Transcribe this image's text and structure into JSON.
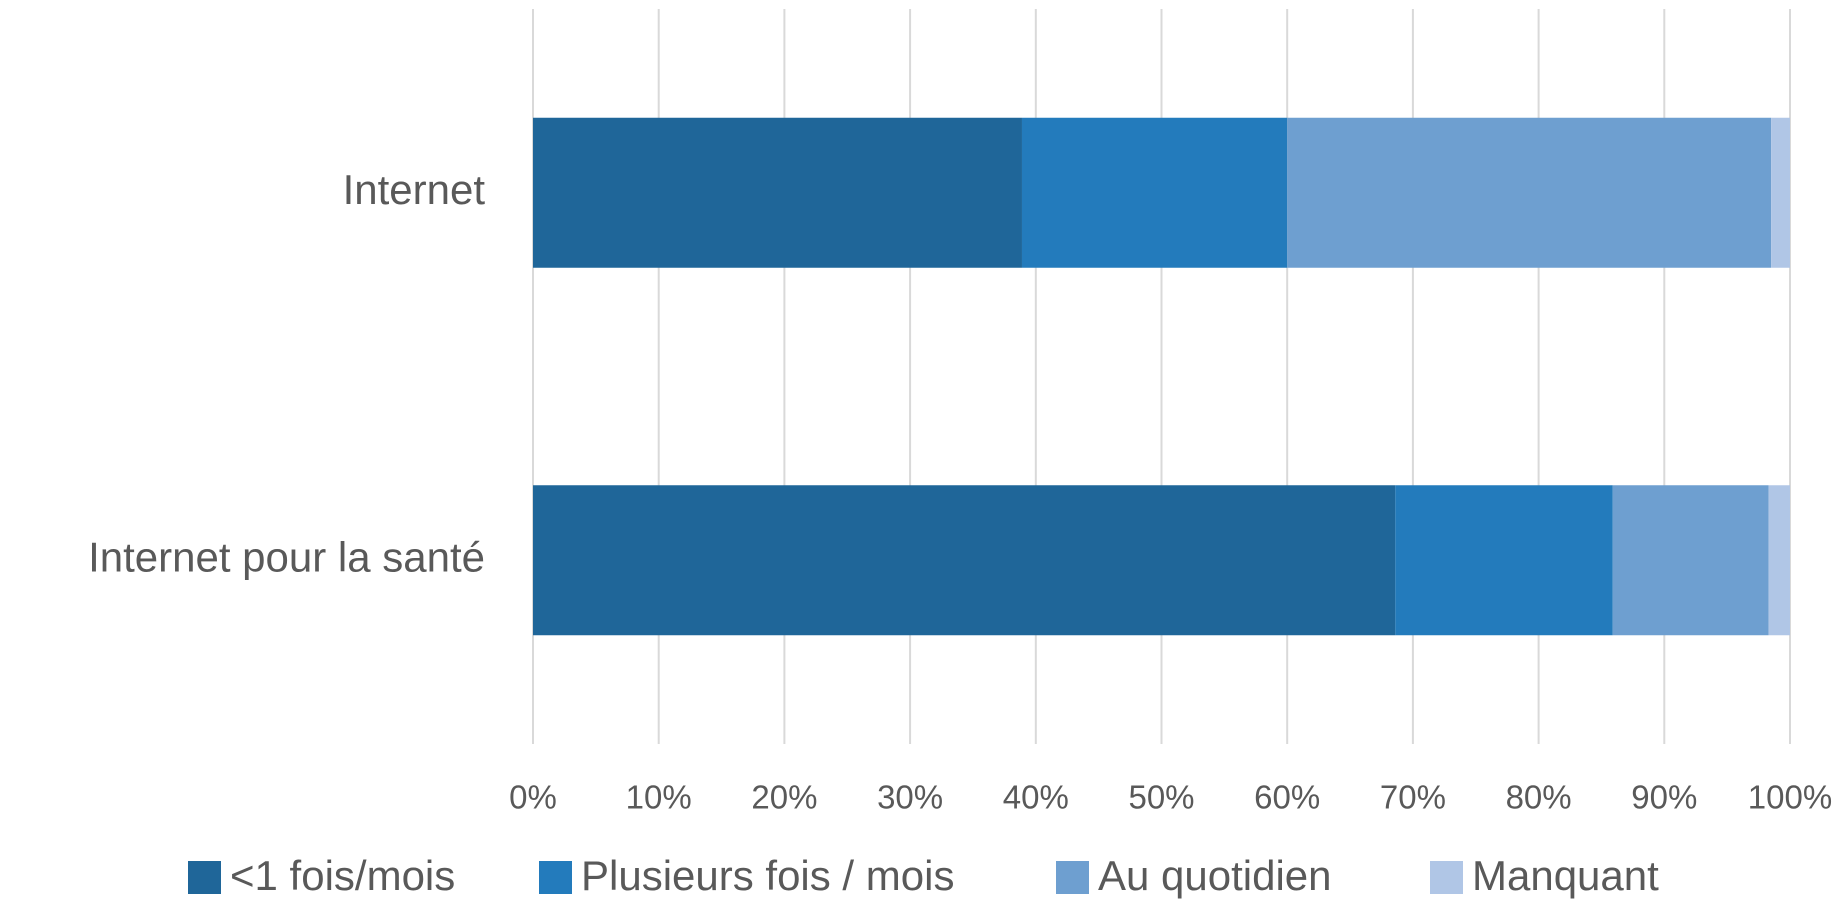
{
  "chart_data": {
    "type": "stacked_bar_horizontal",
    "categories": [
      "Internet",
      "Internet pour la santé"
    ],
    "series": [
      {
        "name": "<1 fois/mois",
        "color": "#1f6699",
        "values": [
          38.9,
          68.6
        ]
      },
      {
        "name": "Plusieurs fois / mois",
        "color": "#237bbc",
        "values": [
          21.1,
          17.3
        ]
      },
      {
        "name": "Au quotidien",
        "color": "#6e9fd0",
        "values": [
          38.5,
          12.4
        ]
      },
      {
        "name": "Manquant",
        "color": "#b0c6e6",
        "values": [
          1.5,
          1.7
        ]
      }
    ],
    "xlim": [
      0,
      100
    ],
    "xticks": [
      {
        "value": 0,
        "label": "0%"
      },
      {
        "value": 10,
        "label": "10%"
      },
      {
        "value": 20,
        "label": "20%"
      },
      {
        "value": 30,
        "label": "30%"
      },
      {
        "value": 40,
        "label": "40%"
      },
      {
        "value": 50,
        "label": "50%"
      },
      {
        "value": 60,
        "label": "60%"
      },
      {
        "value": 70,
        "label": "70%"
      },
      {
        "value": 80,
        "label": "80%"
      },
      {
        "value": 90,
        "label": "90%"
      },
      {
        "value": 100,
        "label": "100%"
      }
    ],
    "grid": true,
    "legend": "bottom"
  }
}
